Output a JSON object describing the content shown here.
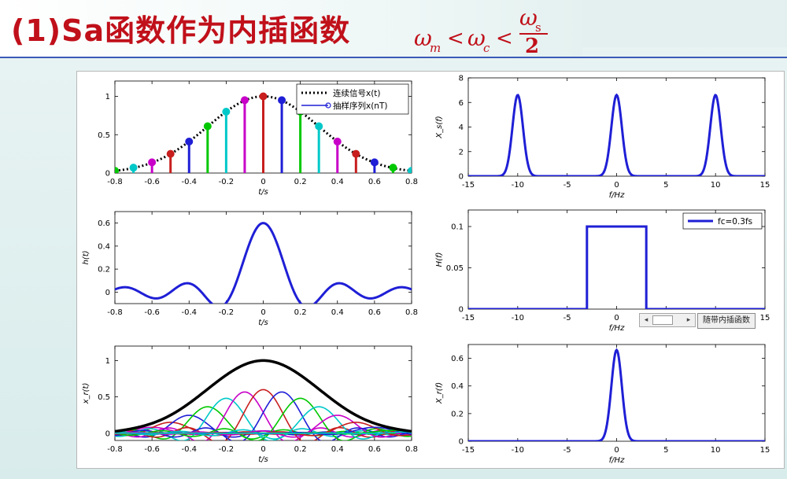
{
  "title": "(1)Sa函数作为内插函数",
  "formula": {
    "omega": "ω",
    "sub_m": "m",
    "sub_c": "c",
    "sub_s": "s",
    "lt": "<",
    "two": "2"
  },
  "controls": {
    "filter_button": "随带内插函数",
    "scroll_left": "◂",
    "scroll_right": "▸"
  },
  "colors": {
    "title": "#c0101a",
    "rule": "#3a5ab8",
    "main_line": "#1f1fd6",
    "envelope": "#000000"
  },
  "sample_colors": [
    "#00c800",
    "#00c8c8",
    "#c800c8",
    "#c81e1e",
    "#1f1fd6",
    "#00c800",
    "#00c8c8",
    "#c800c8",
    "#c81e1e",
    "#1f1fd6",
    "#00c800",
    "#00c8c8",
    "#c800c8",
    "#c81e1e",
    "#1f1fd6",
    "#00c800",
    "#00c8c8"
  ],
  "chart_data": [
    {
      "id": "sampled-signal",
      "type": "line",
      "xlabel": "t/s",
      "ylabel": "",
      "xlim": [
        -0.8,
        0.8
      ],
      "ylim": [
        0,
        1.2
      ],
      "xticks": [
        -0.8,
        -0.6,
        -0.4,
        -0.2,
        0,
        0.2,
        0.4,
        0.6,
        0.8
      ],
      "xtick_labels": [
        "-0.8",
        "-0.6",
        "-0.4",
        "-0.2",
        "0",
        "0.2",
        "0.4",
        "0.6",
        "0.8"
      ],
      "yticks": [
        0,
        0.5,
        1
      ],
      "ytick_labels": [
        "0",
        "0.5",
        "1"
      ],
      "legend": {
        "placement": "top-right",
        "entries": [
          {
            "label": "连续信号x(t)",
            "style": "dotted",
            "color": "#000000"
          },
          {
            "label": "抽样序列x(nT)",
            "style": "stem",
            "color": "#1f1fd6"
          }
        ]
      },
      "series": [
        {
          "name": "连续信号x(t)",
          "kind": "gaussian",
          "sigma": 0.3
        },
        {
          "name": "抽样序列x(nT)",
          "kind": "stems",
          "x": [
            -0.8,
            -0.7,
            -0.6,
            -0.5,
            -0.4,
            -0.3,
            -0.2,
            -0.1,
            0,
            0.1,
            0.2,
            0.3,
            0.4,
            0.5,
            0.6,
            0.7,
            0.8
          ],
          "y": [
            0.03,
            0.07,
            0.14,
            0.25,
            0.41,
            0.61,
            0.8,
            0.95,
            1.0,
            0.95,
            0.8,
            0.61,
            0.41,
            0.25,
            0.14,
            0.07,
            0.03
          ]
        }
      ]
    },
    {
      "id": "impulse-response",
      "type": "line",
      "xlabel": "t/s",
      "ylabel": "h(t)",
      "xlim": [
        -0.8,
        0.8
      ],
      "ylim": [
        -0.1,
        0.7
      ],
      "xticks": [
        -0.8,
        -0.6,
        -0.4,
        -0.2,
        0,
        0.2,
        0.4,
        0.6,
        0.8
      ],
      "xtick_labels": [
        "-0.8",
        "-0.6",
        "-0.4",
        "-0.2",
        "0",
        "0.2",
        "0.4",
        "0.6",
        "0.8"
      ],
      "yticks": [
        0,
        0.2,
        0.4,
        0.6
      ],
      "ytick_labels": [
        "0",
        "0.2",
        "0.4",
        "0.6"
      ],
      "series": [
        {
          "kind": "sinc",
          "amplitude": 0.6,
          "fc": 3
        }
      ]
    },
    {
      "id": "reconstruction",
      "type": "line",
      "xlabel": "t/s",
      "ylabel": "x_r(t)",
      "xlim": [
        -0.8,
        0.8
      ],
      "ylim": [
        -0.1,
        1.2
      ],
      "xticks": [
        -0.8,
        -0.6,
        -0.4,
        -0.2,
        0,
        0.2,
        0.4,
        0.6,
        0.8
      ],
      "xtick_labels": [
        "-0.8",
        "-0.6",
        "-0.4",
        "-0.2",
        "0",
        "0.2",
        "0.4",
        "0.6",
        "0.8"
      ],
      "yticks": [
        0,
        0.5,
        1
      ],
      "ytick_labels": [
        "0",
        "0.5",
        "1"
      ],
      "series": [
        {
          "kind": "interpolation",
          "sigma": 0.3,
          "T": 0.1,
          "fc": 3,
          "amplitude": 0.6
        }
      ]
    },
    {
      "id": "sampled-spectrum",
      "type": "line",
      "xlabel": "f/Hz",
      "ylabel": "X_s(f)",
      "xlim": [
        -15,
        15
      ],
      "ylim": [
        0,
        8
      ],
      "xticks": [
        -15,
        -10,
        -5,
        0,
        5,
        10,
        15
      ],
      "xtick_labels": [
        "-15",
        "-10",
        "-5",
        "0",
        "5",
        "10",
        "15"
      ],
      "yticks": [
        0,
        2,
        4,
        6,
        8
      ],
      "ytick_labels": [
        "0",
        "2",
        "4",
        "6",
        "8"
      ],
      "series": [
        {
          "kind": "spectrum-peaks",
          "centers": [
            -10,
            0,
            10
          ],
          "peak": 6.6,
          "sigma": 0.53
        }
      ]
    },
    {
      "id": "filter-response",
      "type": "line",
      "xlabel": "f/Hz",
      "ylabel": "H(f)",
      "xlim": [
        -15,
        15
      ],
      "ylim": [
        0,
        0.12
      ],
      "xticks": [
        -15,
        -10,
        -5,
        0,
        5,
        10,
        15
      ],
      "xtick_labels": [
        "-15",
        "-10",
        "-5",
        "0",
        "5",
        "10",
        "15"
      ],
      "yticks": [
        0,
        0.05,
        0.1
      ],
      "ytick_labels": [
        "0",
        "0.05",
        "0.1"
      ],
      "legend": {
        "placement": "top-right",
        "entries": [
          {
            "label": "fc=0.3fs",
            "style": "solid",
            "color": "#1f1fd6"
          }
        ]
      },
      "series": [
        {
          "name": "fc=0.3fs",
          "kind": "rect",
          "x": [
            -15,
            -3,
            -3,
            3,
            3,
            15
          ],
          "y": [
            0,
            0,
            0.1,
            0.1,
            0,
            0
          ]
        }
      ]
    },
    {
      "id": "reconstructed-spectrum",
      "type": "line",
      "xlabel": "f/Hz",
      "ylabel": "X_r(f)",
      "xlim": [
        -15,
        15
      ],
      "ylim": [
        0,
        0.7
      ],
      "xticks": [
        -15,
        -10,
        -5,
        0,
        5,
        10,
        15
      ],
      "xtick_labels": [
        "-15",
        "-10",
        "-5",
        "0",
        "5",
        "10",
        "15"
      ],
      "yticks": [
        0,
        0.2,
        0.4,
        0.6
      ],
      "ytick_labels": [
        "0",
        "0.2",
        "0.4",
        "0.6"
      ],
      "series": [
        {
          "kind": "spectrum-peaks",
          "centers": [
            0
          ],
          "peak": 0.66,
          "sigma": 0.53
        }
      ]
    }
  ]
}
